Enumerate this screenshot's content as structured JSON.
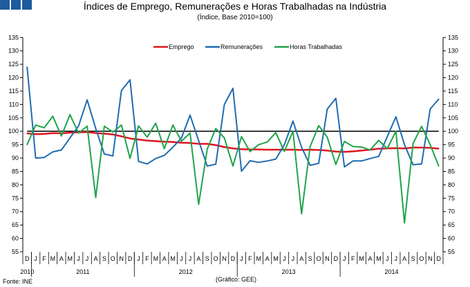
{
  "header": {
    "title": "Índices de Emprego, Remunerações e Horas Trabalhadas na Indústria",
    "subtitle": "(Índice, Base 2010=100)",
    "logo_color": "#1d5c9e"
  },
  "footer": {
    "source": "Fonte: INE",
    "credit": "(Gráfico: GEE)"
  },
  "chart_data": {
    "type": "line",
    "title": "Índices de Emprego, Remunerações e Horas Trabalhadas na Indústria",
    "subtitle": "(Índice, Base 2010=100)",
    "ylim": [
      55,
      135
    ],
    "yticks": [
      55,
      60,
      65,
      70,
      75,
      80,
      85,
      90,
      95,
      100,
      105,
      110,
      115,
      120,
      125,
      130,
      135
    ],
    "reference_line": 100,
    "legend_position": "top-center",
    "grid": false,
    "month_labels": [
      "D",
      "J",
      "F",
      "M",
      "A",
      "M",
      "J",
      "J",
      "A",
      "S",
      "O",
      "N",
      "D",
      "J",
      "F",
      "M",
      "A",
      "M",
      "J",
      "J",
      "A",
      "S",
      "O",
      "N",
      "D",
      "J",
      "F",
      "M",
      "A",
      "M",
      "J",
      "J",
      "A",
      "S",
      "O",
      "N",
      "D",
      "J",
      "F",
      "M",
      "A",
      "M",
      "J",
      "J",
      "A",
      "S",
      "O",
      "N",
      "D"
    ],
    "years": [
      "2010",
      "2011",
      "2012",
      "2013",
      "2014"
    ],
    "series": [
      {
        "name": "Emprego",
        "color": "#e0141e",
        "values": [
          99.2,
          98.9,
          99.0,
          99.3,
          99.2,
          99.5,
          99.6,
          99.7,
          99.3,
          99.1,
          98.8,
          98.1,
          97.3,
          96.9,
          96.5,
          96.3,
          96.1,
          96.0,
          95.7,
          95.6,
          95.3,
          95.3,
          94.8,
          94.1,
          93.6,
          93.3,
          93.2,
          93.2,
          93.1,
          93.1,
          93.1,
          93.1,
          93.0,
          93.1,
          93.0,
          92.8,
          92.4,
          92.3,
          92.5,
          92.8,
          93.1,
          93.5,
          93.6,
          93.7,
          93.6,
          93.9,
          93.9,
          93.8,
          93.5
        ]
      },
      {
        "name": "Remunerações",
        "color": "#1f6bb0",
        "values": [
          124,
          90,
          90.2,
          92.3,
          93,
          97.5,
          102,
          111.7,
          101,
          91.5,
          90.8,
          115.2,
          119.2,
          88.7,
          87.8,
          89.8,
          91,
          94,
          97.5,
          106,
          96.5,
          87,
          87.7,
          110,
          116,
          85.1,
          89,
          88.4,
          88.9,
          89.6,
          95,
          103.8,
          94,
          87.3,
          88,
          108.3,
          112.3,
          86.7,
          88.9,
          88.9,
          89.8,
          90.6,
          98,
          105.4,
          95,
          87.5,
          87.8,
          108.3,
          112
        ]
      },
      {
        "name": "Horas Trabalhadas",
        "color": "#1fa34a",
        "values": [
          95,
          102.3,
          101.3,
          105.6,
          98.2,
          106.2,
          99.3,
          101.9,
          75.3,
          101.9,
          99.7,
          102.3,
          89.9,
          102,
          97.8,
          103,
          93.5,
          102.3,
          96.3,
          99.3,
          72.7,
          93.3,
          101,
          97.5,
          87,
          98,
          92.4,
          95,
          96,
          99.5,
          92.5,
          100,
          69.2,
          94.3,
          102.1,
          97.8,
          87.6,
          96.2,
          94.3,
          94.1,
          93,
          96.6,
          93.5,
          100,
          65.8,
          95.4,
          101.8,
          95,
          87
        ]
      }
    ]
  }
}
